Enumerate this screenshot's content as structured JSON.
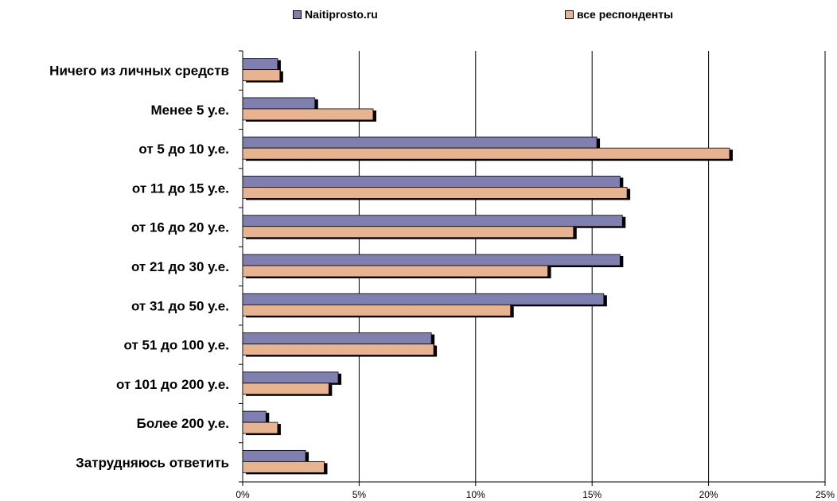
{
  "legend": {
    "series1_label": "Naitiprosto.ru",
    "series2_label": "все респонденты"
  },
  "colors": {
    "series1": "#8080b0",
    "series2": "#e8b490",
    "shadow": "#000000",
    "grid": "#000000"
  },
  "chart_data": {
    "type": "bar",
    "orientation": "horizontal",
    "categories": [
      "Ничего из личных средств",
      "Менее 5 у.е.",
      "от 5 до 10 у.е.",
      "от 11 до 15 у.е.",
      "от 16 до 20 у.е.",
      "от 21 до 30 у.е.",
      "от 31 до 50 у.е.",
      "от 51 до 100 у.е.",
      "от 101 до 200 у.е.",
      "Более 200 у.е.",
      "Затрудняюсь ответить"
    ],
    "series": [
      {
        "name": "Naitiprosto.ru",
        "values": [
          1.5,
          3.1,
          15.2,
          16.2,
          16.3,
          16.2,
          15.5,
          8.1,
          4.1,
          1.0,
          2.7
        ]
      },
      {
        "name": "все респонденты",
        "values": [
          1.6,
          5.6,
          20.9,
          16.5,
          14.2,
          13.1,
          11.5,
          8.2,
          3.7,
          1.5,
          3.5
        ]
      }
    ],
    "xlim": [
      0,
      25
    ],
    "x_ticks": [
      "0%",
      "5%",
      "10%",
      "15%",
      "20%",
      "25%"
    ],
    "x_tick_values": [
      0,
      5,
      10,
      15,
      20,
      25
    ],
    "grid": true,
    "legend_position": "top"
  }
}
